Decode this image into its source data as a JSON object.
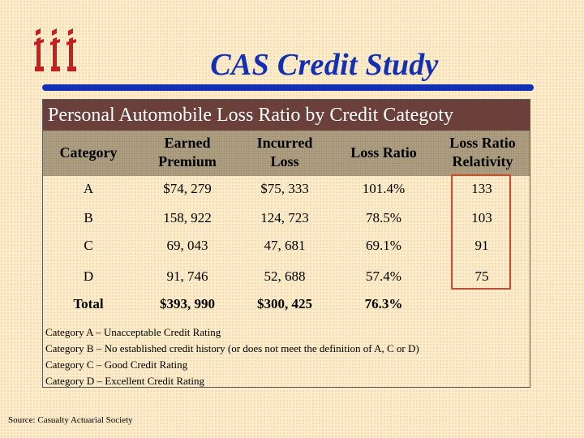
{
  "title": "CAS Credit Study",
  "panel_title": "Personal Automobile Loss Ratio by Credit Categoty",
  "table": {
    "headers": [
      {
        "line1": "Category",
        "line2": ""
      },
      {
        "line1": "Earned",
        "line2": "Premium"
      },
      {
        "line1": "Incurred",
        "line2": "Loss"
      },
      {
        "line1": "Loss Ratio",
        "line2": ""
      },
      {
        "line1": "Loss Ratio",
        "line2": "Relativity"
      }
    ],
    "rows": [
      {
        "category": "A",
        "earned_premium": "$74, 279",
        "incurred_loss": "$75, 333",
        "loss_ratio": "101.4%",
        "relativity": "133"
      },
      {
        "category": "B",
        "earned_premium": "158, 922",
        "incurred_loss": "124, 723",
        "loss_ratio": "78.5%",
        "relativity": "103"
      },
      {
        "category": "C",
        "earned_premium": "69, 043",
        "incurred_loss": "47, 681",
        "loss_ratio": "69.1%",
        "relativity": "91"
      },
      {
        "category": "D",
        "earned_premium": "91, 746",
        "incurred_loss": "52, 688",
        "loss_ratio": "57.4%",
        "relativity": "75"
      }
    ],
    "total": {
      "category": "Total",
      "earned_premium": "$393, 990",
      "incurred_loss": "$300, 425",
      "loss_ratio": "76.3%",
      "relativity": ""
    }
  },
  "definitions": [
    "Category A – Unacceptable Credit Rating",
    "Category B – No established credit history (or does not meet the definition of A, C or D)",
    "Category C – Good Credit Rating",
    "Category D – Excellent Credit Rating"
  ],
  "source": "Source: Casualty Actuarial Society",
  "colors": {
    "title": "#1330b4",
    "panel_title_bg": "#6b3f3a",
    "header_band": "#b2a385",
    "highlight": "#d24a2c",
    "background": "#fcebc6"
  },
  "icons": {
    "logo": "iii-logo"
  }
}
